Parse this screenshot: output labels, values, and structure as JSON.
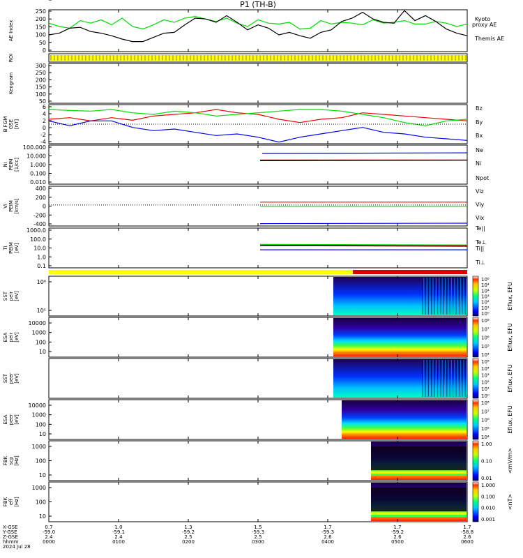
{
  "title": "P1 (TH-B)",
  "colors": {
    "black": "#000000",
    "green": "#00dd00",
    "red": "#ee0000",
    "blue": "#0000ee",
    "yellow": "#ffff00",
    "status_red": "#dd0000"
  },
  "chart_data": [
    {
      "type": "line",
      "panel": "ae",
      "ylabel": "AE Index",
      "yticks": [
        "250",
        "200",
        "150",
        "100",
        "50",
        "0"
      ],
      "ylim": [
        0,
        250
      ],
      "series": [
        {
          "name": "Kyoto proxy AE",
          "color": "#00dd00",
          "x": [
            0.7,
            0.75,
            0.8,
            0.85,
            0.9,
            0.95,
            1.0,
            1.05,
            1.1,
            1.15,
            1.2,
            1.25,
            1.3,
            1.35,
            1.4,
            1.45,
            1.5,
            1.55,
            1.6,
            1.65,
            1.7,
            1.75,
            1.8,
            1.85,
            1.9,
            1.95,
            2.0,
            2.05,
            2.1,
            2.15,
            2.2,
            2.25,
            2.3,
            2.35,
            2.4,
            2.45,
            2.5,
            2.55,
            2.6,
            2.65,
            2.7
          ],
          "y": [
            170,
            150,
            140,
            185,
            170,
            190,
            160,
            200,
            150,
            135,
            160,
            190,
            175,
            200,
            210,
            195,
            180,
            200,
            170,
            150,
            190,
            170,
            165,
            175,
            135,
            140,
            185,
            165,
            175,
            170,
            160,
            190,
            170,
            175,
            185,
            165,
            165,
            180,
            170,
            150,
            165
          ]
        },
        {
          "name": "Themis AE",
          "color": "#000000",
          "x": [
            0.7,
            0.75,
            0.8,
            0.85,
            0.9,
            0.95,
            1.0,
            1.05,
            1.1,
            1.15,
            1.2,
            1.25,
            1.3,
            1.35,
            1.4,
            1.45,
            1.5,
            1.55,
            1.6,
            1.65,
            1.7,
            1.75,
            1.8,
            1.85,
            1.9,
            1.95,
            2.0,
            2.05,
            2.1,
            2.15,
            2.2,
            2.25,
            2.3,
            2.35,
            2.4,
            2.45,
            2.5,
            2.55,
            2.6,
            2.65,
            2.7
          ],
          "y": [
            100,
            110,
            140,
            145,
            120,
            110,
            95,
            75,
            60,
            60,
            85,
            110,
            115,
            160,
            200,
            195,
            175,
            215,
            175,
            130,
            160,
            140,
            100,
            115,
            95,
            80,
            115,
            130,
            180,
            200,
            235,
            195,
            175,
            170,
            245,
            185,
            215,
            180,
            135,
            110,
            95
          ]
        }
      ]
    },
    {
      "type": "line",
      "panel": "bfgm",
      "ylabel": "B FGM GSE [nT]",
      "yticks": [
        "6",
        "4",
        "2",
        "0",
        "-2",
        "-4"
      ],
      "ylim": [
        -6,
        6
      ],
      "series": [
        {
          "name": "Bz",
          "color": "#ee0000",
          "x": [
            0.7,
            0.8,
            0.9,
            1.0,
            1.1,
            1.2,
            1.3,
            1.4,
            1.5,
            1.6,
            1.7,
            1.8,
            1.9,
            2.0,
            2.1,
            2.2,
            2.3,
            2.4,
            2.5,
            2.6,
            2.7
          ],
          "y": [
            1.5,
            2.0,
            1.0,
            2.0,
            1.2,
            2.5,
            3.0,
            3.5,
            4.5,
            3.5,
            3.0,
            1.5,
            0.5,
            1.5,
            2.0,
            3.5,
            3.0,
            2.5,
            2.0,
            1.5,
            1.0
          ]
        },
        {
          "name": "By",
          "color": "#00dd00",
          "x": [
            0.7,
            0.8,
            0.9,
            1.0,
            1.1,
            1.2,
            1.3,
            1.4,
            1.5,
            1.6,
            1.7,
            1.8,
            1.9,
            2.0,
            2.1,
            2.2,
            2.3,
            2.4,
            2.5,
            2.6,
            2.7
          ],
          "y": [
            4.5,
            4.2,
            4.0,
            4.5,
            3.5,
            3.0,
            4.0,
            3.5,
            2.5,
            3.0,
            3.5,
            4.0,
            4.5,
            4.5,
            4.0,
            3.0,
            2.0,
            0.5,
            -0.5,
            1.0,
            1.5
          ]
        },
        {
          "name": "Bx",
          "color": "#0000ee",
          "x": [
            0.7,
            0.8,
            0.9,
            1.0,
            1.1,
            1.2,
            1.3,
            1.4,
            1.5,
            1.6,
            1.7,
            1.8,
            1.9,
            2.0,
            2.1,
            2.2,
            2.3,
            2.4,
            2.5,
            2.6,
            2.7
          ],
          "y": [
            1.0,
            -0.5,
            1.0,
            1.0,
            -1.0,
            -2.0,
            -1.5,
            -2.5,
            -3.5,
            -3.0,
            -4.0,
            -5.5,
            -4.0,
            -3.0,
            -2.0,
            -1.0,
            -2.5,
            -3.0,
            -4.0,
            -4.5,
            -5.0
          ]
        }
      ]
    },
    {
      "type": "line",
      "panel": "ni",
      "ylabel": "Ni PEIM [1/cc]",
      "yticks": [
        "100.000",
        "10.000",
        "1.000",
        "0.100",
        "0.010"
      ],
      "ylim": [
        0.01,
        100
      ],
      "log": true,
      "series": [
        {
          "name": "Ne",
          "color": "#ee0000",
          "x": [
            1.71,
            2.7
          ],
          "y": [
            3.0,
            3.0
          ]
        },
        {
          "name": "Ni",
          "color": "#000000",
          "x": [
            1.71,
            2.7
          ],
          "y": [
            2.5,
            2.8
          ]
        },
        {
          "name": "Npot",
          "color": "#0000ee",
          "x": [
            1.72,
            2.7
          ],
          "y": [
            14,
            16
          ]
        }
      ]
    },
    {
      "type": "line",
      "panel": "vi",
      "ylabel": "Vi PEIM GSE [km/s]",
      "yticks": [
        "400",
        "200",
        "0",
        "-200",
        "-400"
      ],
      "ylim": [
        -450,
        400
      ],
      "series": [
        {
          "name": "Viz",
          "color": "#ee0000",
          "x": [
            1.71,
            2.7
          ],
          "y": [
            60,
            60
          ]
        },
        {
          "name": "Viy",
          "color": "#00dd00",
          "x": [
            1.71,
            2.7
          ],
          "y": [
            -30,
            -30
          ]
        },
        {
          "name": "Vix",
          "color": "#0000ee",
          "x": [
            1.71,
            2.7
          ],
          "y": [
            -400,
            -390
          ]
        }
      ]
    },
    {
      "type": "line",
      "panel": "ti",
      "ylabel": "Ti PEIM [eV]",
      "yticks": [
        "1000.0",
        "100.0",
        "10.0",
        "1.0",
        "0.1"
      ],
      "ylim": [
        0.1,
        2000
      ],
      "log": true,
      "series": [
        {
          "name": "Te||",
          "color": "#000000",
          "x": [
            1.71,
            2.7
          ],
          "y": [
            25,
            22
          ]
        },
        {
          "name": "Te⊥",
          "color": "#ee0000",
          "x": [
            1.71,
            2.7
          ],
          "y": [
            30,
            26
          ]
        },
        {
          "name": "Ti||",
          "color": "#00dd00",
          "x": [
            1.71,
            2.7
          ],
          "y": [
            35,
            30
          ]
        },
        {
          "name": "Ti⊥",
          "color": "#0000ee",
          "x": [
            1.71,
            2.7
          ],
          "y": [
            9,
            9
          ]
        }
      ]
    }
  ],
  "side_labels": {
    "ae": [
      "Kyoto",
      "proxy AE",
      "Themis AE"
    ],
    "roi": "ROI",
    "keogram": "Keogram",
    "keogram_ticks": [
      "300",
      "250",
      "200",
      "150",
      "100",
      "50"
    ],
    "sst_peir": [
      "SST",
      "peir",
      "[eV]"
    ],
    "sst_peir_ticks": [
      "10⁶",
      "10⁵"
    ],
    "esa_peir": [
      "ESA",
      "peir",
      "[eV]"
    ],
    "esa_peir_ticks": [
      "10000",
      "1000",
      "100",
      "10"
    ],
    "sst_peer": [
      "SST",
      "peer",
      "[eV]"
    ],
    "sst_peer_ticks": [
      "10⁵"
    ],
    "esa_peer": [
      "ESA",
      "peer",
      "[eV]"
    ],
    "esa_peer_ticks": [
      "10000",
      "1000",
      "100",
      "10"
    ],
    "fbk_scm": [
      "FBK",
      "scp",
      "[Hz]"
    ],
    "fbk_scm_ticks": [
      "1000",
      "100",
      "10"
    ],
    "fbk_efi": [
      "FBK",
      "eff",
      "[Hz]"
    ],
    "fbk_efi_ticks": [
      "1000",
      "100",
      "10"
    ]
  },
  "colorbars": [
    {
      "label": "Eflux, EFU",
      "ticks": [
        "10⁸",
        "10⁴",
        "10⁴",
        "10³",
        "10²",
        "10¹",
        "10⁰"
      ]
    },
    {
      "label": "Eflux, EFU",
      "ticks": [
        "10⁸",
        "10⁷",
        "10⁶",
        "10⁵",
        "10⁴"
      ]
    },
    {
      "label": "Eflux, EFU",
      "ticks": [
        "10⁶",
        "10⁴",
        "10³",
        "10²",
        "10¹",
        "10⁰"
      ]
    },
    {
      "label": "Eflux, EFU",
      "ticks": [
        "10⁸",
        "10⁷",
        "10⁶",
        "10⁵",
        "10⁴"
      ]
    },
    {
      "label": "<mV/m>",
      "ticks": [
        "1.00",
        "0.10",
        "0.01"
      ]
    },
    {
      "label": "<nT>",
      "ticks": [
        "1.000",
        "0.100",
        "0.010",
        "0.001"
      ]
    }
  ],
  "footer": {
    "row_labels": [
      "X-GSE",
      "Y-GSE",
      "Z-GSE",
      "hhmm",
      "2024 Jul 28"
    ],
    "columns": [
      {
        "x": "0.7",
        "y": "-59.0",
        "z": "2.4",
        "t": "0000"
      },
      {
        "x": "1.0",
        "y": "-59.1",
        "z": "2.4",
        "t": "0100"
      },
      {
        "x": "1.3",
        "y": "-59.2",
        "z": "2.5",
        "t": "0200"
      },
      {
        "x": "1.5",
        "y": "-59.3",
        "z": "2.5",
        "t": "0300"
      },
      {
        "x": "1.7",
        "y": "-59.3",
        "z": "2.6",
        "t": "0400"
      },
      {
        "x": "1.7",
        "y": "-59.2",
        "z": "2.6",
        "t": "0500"
      },
      {
        "x": "1.7",
        "y": "-58.8",
        "z": "2.6",
        "t": "0600"
      }
    ]
  }
}
